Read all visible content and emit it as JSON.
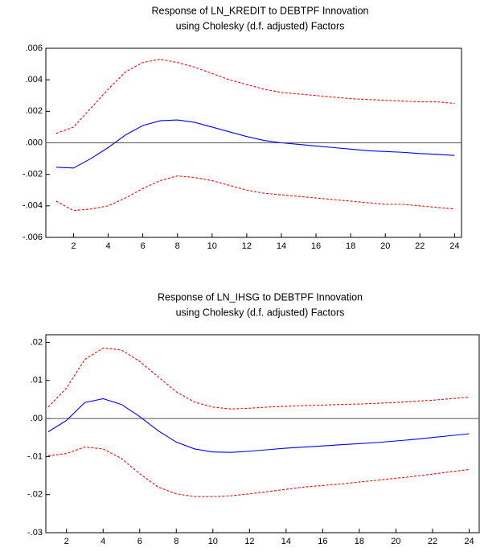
{
  "chart_data": [
    {
      "type": "line",
      "title": "Response of LN_KREDIT to DEBTPF Innovation",
      "subtitle": "using Cholesky (d.f. adjusted) Factors",
      "x": [
        1,
        2,
        3,
        4,
        5,
        6,
        7,
        8,
        9,
        10,
        11,
        12,
        13,
        14,
        15,
        16,
        17,
        18,
        19,
        20,
        21,
        22,
        23,
        24
      ],
      "xlim": [
        0.4,
        24.4
      ],
      "xticks": [
        2,
        4,
        6,
        8,
        10,
        12,
        14,
        16,
        18,
        20,
        22,
        24
      ],
      "ylim": [
        -0.006,
        0.006
      ],
      "yticks": [
        {
          "value": -0.006,
          "label": "-.006"
        },
        {
          "value": -0.004,
          "label": "-.004"
        },
        {
          "value": -0.002,
          "label": "-.002"
        },
        {
          "value": 0,
          "label": ".000"
        },
        {
          "value": 0.002,
          "label": ".002"
        },
        {
          "value": 0.004,
          "label": ".004"
        },
        {
          "value": 0.006,
          "label": ".006"
        }
      ],
      "zero_line": true,
      "series": [
        {
          "color": "#0000ff",
          "dashed": false,
          "values": [
            -0.00155,
            -0.0016,
            -0.001,
            -0.0003,
            0.0005,
            0.0011,
            0.0014,
            0.00145,
            0.0013,
            0.001,
            0.0007,
            0.0004,
            0.00015,
            0.0,
            -0.0001,
            -0.0002,
            -0.0003,
            -0.0004,
            -0.0005,
            -0.00055,
            -0.0006,
            -0.00068,
            -0.00073,
            -0.0008
          ]
        },
        {
          "color": "#ff0000",
          "dashed": true,
          "values": [
            0.0006,
            0.001,
            0.0022,
            0.0034,
            0.0045,
            0.0051,
            0.0053,
            0.0051,
            0.0048,
            0.0044,
            0.004,
            0.0037,
            0.0034,
            0.0032,
            0.0031,
            0.003,
            0.0029,
            0.0028,
            0.00275,
            0.0027,
            0.00265,
            0.0026,
            0.0026,
            0.0025
          ]
        },
        {
          "color": "#ff0000",
          "dashed": true,
          "values": [
            -0.0037,
            -0.0043,
            -0.0042,
            -0.004,
            -0.0035,
            -0.0029,
            -0.0024,
            -0.0021,
            -0.0022,
            -0.0024,
            -0.0027,
            -0.003,
            -0.0032,
            -0.0033,
            -0.0034,
            -0.0035,
            -0.0036,
            -0.0037,
            -0.0038,
            -0.0039,
            -0.0039,
            -0.004,
            -0.0041,
            -0.0042
          ]
        }
      ]
    },
    {
      "type": "line",
      "title": "Response of LN_IHSG to DEBTPF Innovation",
      "subtitle": "using Cholesky (d.f. adjusted) Factors",
      "x": [
        1,
        2,
        3,
        4,
        5,
        6,
        7,
        8,
        9,
        10,
        11,
        12,
        13,
        14,
        15,
        16,
        17,
        18,
        19,
        20,
        21,
        22,
        23,
        24
      ],
      "xlim": [
        0.87,
        24.55
      ],
      "xticks": [
        2,
        4,
        6,
        8,
        10,
        12,
        14,
        16,
        18,
        20,
        22,
        24
      ],
      "ylim": [
        -0.03,
        0.022
      ],
      "yticks": [
        {
          "value": -0.03,
          "label": "-.03"
        },
        {
          "value": -0.02,
          "label": "-.02"
        },
        {
          "value": -0.01,
          "label": "-.01"
        },
        {
          "value": 0,
          "label": ".00"
        },
        {
          "value": 0.01,
          "label": ".01"
        },
        {
          "value": 0.02,
          "label": ".02"
        }
      ],
      "zero_line": true,
      "series": [
        {
          "color": "#0000ff",
          "dashed": false,
          "values": [
            -0.0035,
            -0.0005,
            0.0042,
            0.0052,
            0.0037,
            0.0005,
            -0.0032,
            -0.0062,
            -0.008,
            -0.0088,
            -0.0089,
            -0.0086,
            -0.0082,
            -0.0078,
            -0.0075,
            -0.0072,
            -0.0069,
            -0.0066,
            -0.0063,
            -0.0059,
            -0.0055,
            -0.005,
            -0.0045,
            -0.004
          ]
        },
        {
          "color": "#ff0000",
          "dashed": true,
          "values": [
            0.003,
            0.008,
            0.0155,
            0.0185,
            0.018,
            0.015,
            0.011,
            0.007,
            0.0043,
            0.003,
            0.0025,
            0.0027,
            0.003,
            0.0032,
            0.0034,
            0.0035,
            0.0037,
            0.0038,
            0.004,
            0.0042,
            0.0045,
            0.0048,
            0.0052,
            0.0056
          ]
        },
        {
          "color": "#ff0000",
          "dashed": true,
          "values": [
            -0.0098,
            -0.0092,
            -0.0075,
            -0.008,
            -0.0105,
            -0.0145,
            -0.018,
            -0.0198,
            -0.0205,
            -0.0205,
            -0.0203,
            -0.0198,
            -0.0192,
            -0.0186,
            -0.018,
            -0.0176,
            -0.0172,
            -0.0167,
            -0.0162,
            -0.0157,
            -0.0152,
            -0.0146,
            -0.014,
            -0.0134
          ]
        }
      ]
    }
  ]
}
